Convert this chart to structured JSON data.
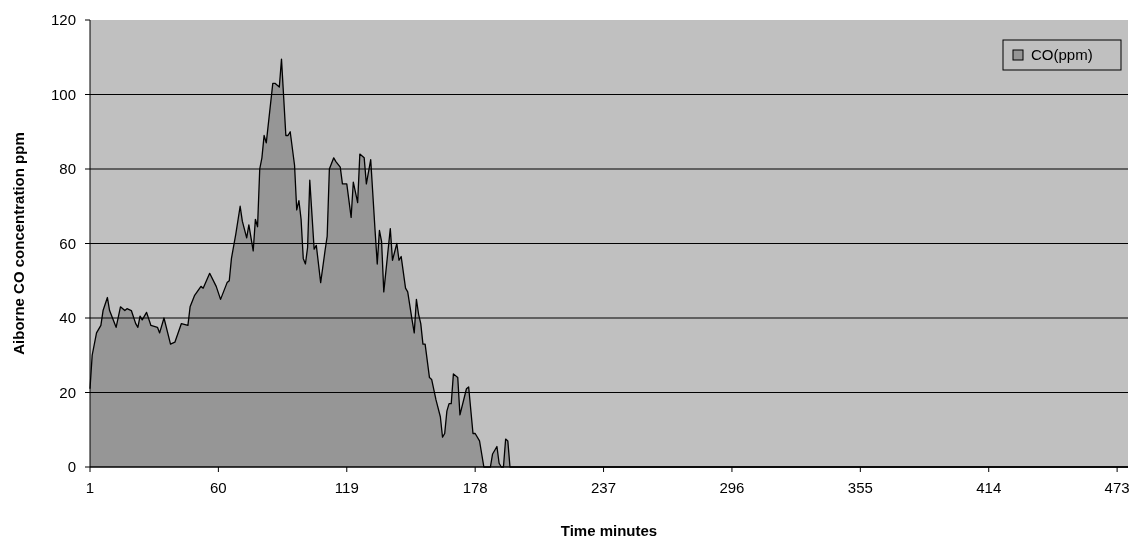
{
  "chart_data": {
    "type": "area",
    "xlabel": "Time minutes",
    "ylabel": "Aiborne CO concentration ppm",
    "xlim": [
      1,
      478
    ],
    "ylim": [
      0,
      120
    ],
    "xticks": [
      1,
      60,
      119,
      178,
      237,
      296,
      355,
      414,
      473
    ],
    "yticks": [
      0,
      20,
      40,
      60,
      80,
      100,
      120
    ],
    "grid": "y",
    "legend": "top right",
    "series": [
      {
        "name": "CO(ppm)",
        "color": "#969696",
        "x": [
          1,
          2,
          4,
          6,
          7,
          9,
          10,
          13,
          15,
          17,
          18,
          20,
          22,
          23,
          24,
          25,
          27,
          29,
          32,
          33,
          35,
          38,
          40,
          43,
          46,
          47,
          49,
          52,
          53,
          56,
          59,
          61,
          64,
          65,
          66,
          68,
          70,
          71,
          73,
          74,
          76,
          77,
          78,
          79,
          80,
          81,
          82,
          85,
          86,
          88,
          89,
          91,
          92,
          93,
          95,
          96,
          97,
          98,
          99,
          100,
          101,
          102,
          104,
          105,
          107,
          109,
          110,
          111,
          113,
          114,
          116,
          117,
          119,
          121,
          122,
          124,
          125,
          127,
          128,
          130,
          132,
          133,
          134,
          135,
          136,
          139,
          140,
          142,
          143,
          144,
          146,
          147,
          149,
          150,
          151,
          152,
          153,
          154,
          155,
          157,
          158,
          160,
          162,
          163,
          164,
          165,
          166,
          167,
          168,
          170,
          171,
          174,
          175,
          177,
          178,
          180,
          182,
          185,
          186,
          188,
          189,
          190,
          191,
          192,
          193,
          194,
          478
        ],
        "values": [
          21,
          30,
          36,
          38,
          42,
          45.5,
          42,
          37.5,
          43,
          42,
          42.5,
          42,
          38.5,
          37.5,
          40.5,
          39.5,
          41.5,
          38,
          37.5,
          36,
          40,
          33,
          33.5,
          38.5,
          38,
          43,
          46,
          48.5,
          48,
          52,
          48.5,
          45,
          49.5,
          50,
          56,
          62.5,
          70,
          66,
          61.5,
          65,
          58,
          66.5,
          64.5,
          80,
          83,
          89,
          87,
          103,
          103,
          102,
          109.5,
          89,
          89,
          90,
          81,
          69,
          71.5,
          66.5,
          56,
          54.5,
          59,
          77,
          58.5,
          59.5,
          49.5,
          58,
          62,
          80,
          83,
          82,
          80.5,
          76,
          76,
          67,
          76.5,
          71,
          84,
          83,
          76,
          82.5,
          63.5,
          54.5,
          63.5,
          60.5,
          47,
          64,
          55.5,
          60,
          55.5,
          56.5,
          48,
          47,
          39.5,
          36,
          45,
          41,
          38.5,
          33,
          33,
          24,
          23.5,
          18,
          13.5,
          8,
          9,
          15,
          17,
          17,
          25,
          24,
          14,
          21,
          21.5,
          9,
          9,
          7,
          0,
          0,
          3.5,
          5.5,
          1,
          0,
          0,
          7.5,
          7,
          0,
          0
        ]
      }
    ]
  }
}
